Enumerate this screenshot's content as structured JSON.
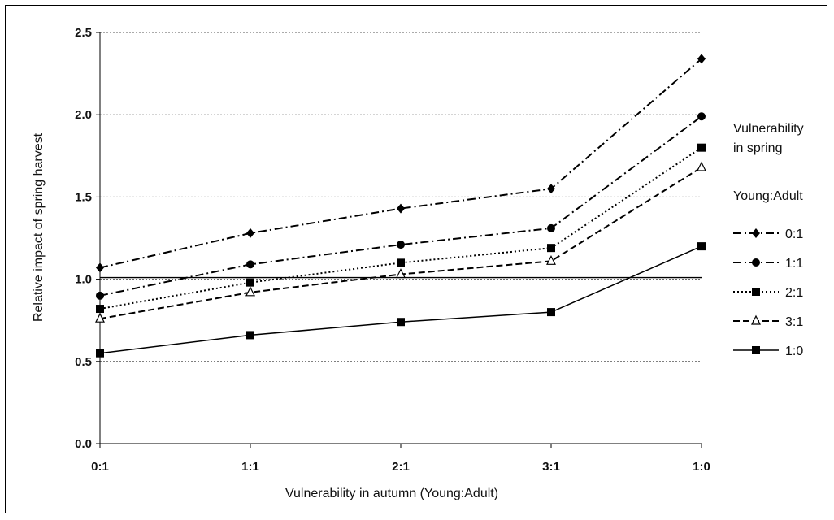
{
  "chart_data": {
    "type": "line",
    "categories": [
      "0:1",
      "1:1",
      "2:1",
      "3:1",
      "1:0"
    ],
    "xlabel": "Vulnerability in autumn (Young:Adult)",
    "ylabel": "Relative impact of spring harvest",
    "ylim": [
      0,
      2.5
    ],
    "yticks": [
      "0.0",
      "0.5",
      "1.0",
      "1.5",
      "2.0",
      "2.5"
    ],
    "grid": "horizontal dashed",
    "reference_line": 1.01,
    "legend": {
      "title_lines": [
        "Vulnerability",
        "in spring",
        "Young:Adult"
      ],
      "placement": "right"
    },
    "series": [
      {
        "name": "0:1",
        "values": [
          1.07,
          1.28,
          1.43,
          1.55,
          2.34
        ],
        "marker": "diamond",
        "dash": "dashdot"
      },
      {
        "name": "1:1",
        "values": [
          0.9,
          1.09,
          1.21,
          1.31,
          1.99
        ],
        "marker": "circle",
        "dash": "dashdot"
      },
      {
        "name": "2:1",
        "values": [
          0.82,
          0.98,
          1.1,
          1.19,
          1.8
        ],
        "marker": "square",
        "dash": "dotted"
      },
      {
        "name": "3:1",
        "values": [
          0.76,
          0.92,
          1.03,
          1.11,
          1.68
        ],
        "marker": "triangle",
        "dash": "dashed"
      },
      {
        "name": "1:0",
        "values": [
          0.55,
          0.66,
          0.74,
          0.8,
          1.2
        ],
        "marker": "square",
        "dash": "solid"
      }
    ]
  }
}
